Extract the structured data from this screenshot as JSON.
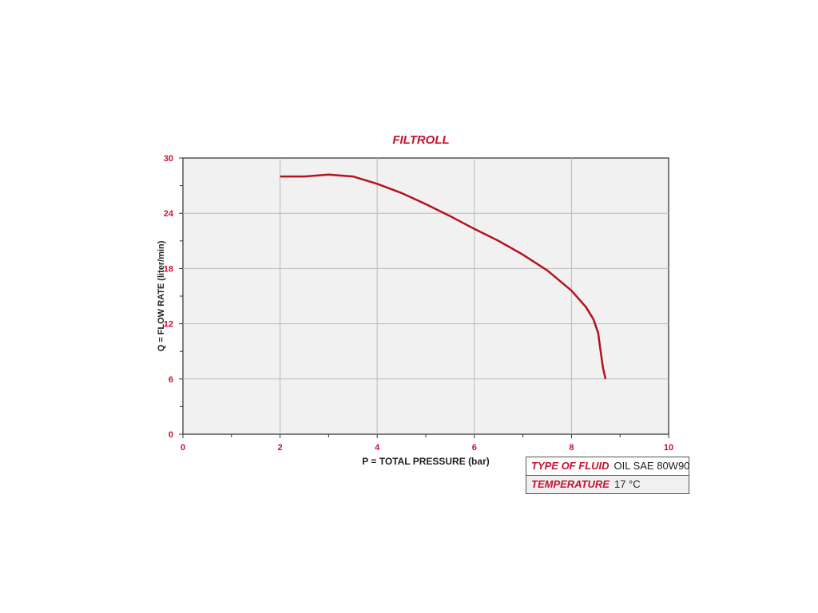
{
  "chart_data": {
    "type": "line",
    "title": "FILTROLL",
    "xlabel": "P = TOTAL PRESSURE (bar)",
    "ylabel": "Q = FLOW RATE (liter/min)",
    "xlim": [
      0,
      10
    ],
    "ylim": [
      0,
      30
    ],
    "xticks": [
      0,
      2,
      4,
      6,
      8,
      10
    ],
    "yticks": [
      0,
      6,
      12,
      18,
      24,
      30
    ],
    "grid": true,
    "series": [
      {
        "color": "#b3121f",
        "x": [
          2,
          2.5,
          3,
          3.5,
          4,
          4.5,
          5,
          5.5,
          6,
          6.5,
          7,
          7.5,
          8,
          8.3,
          8.45,
          8.55,
          8.6,
          8.65,
          8.7
        ],
        "y": [
          28.0,
          28.0,
          28.2,
          28.0,
          27.2,
          26.2,
          25.0,
          23.7,
          22.3,
          21.0,
          19.5,
          17.8,
          15.6,
          13.8,
          12.5,
          11.0,
          9.0,
          7.2,
          6.0
        ]
      }
    ]
  },
  "info": {
    "fluid_label": "TYPE OF FLUID",
    "fluid_value": "OIL SAE 80W90",
    "temp_label": "TEMPERATURE",
    "temp_value": "17 °C"
  }
}
